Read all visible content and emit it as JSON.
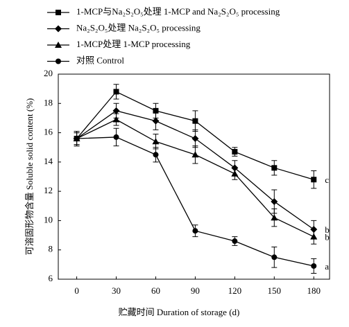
{
  "chart_data": {
    "type": "line",
    "x_label": "贮藏时间 Duration of storage (d)",
    "y_label": "可溶固形物含量 Soluble solid content (%)",
    "x": [
      0,
      30,
      60,
      90,
      120,
      150,
      180
    ],
    "series": [
      {
        "name": "1-MCP与Na₂S₂O₅处理 1-MCP and Na₂S₂O₅ processing",
        "color": "#000000",
        "marker": "square",
        "values": [
          15.6,
          18.8,
          17.5,
          16.8,
          14.7,
          13.6,
          12.8
        ],
        "errors": [
          0.5,
          0.5,
          0.5,
          0.7,
          0.3,
          0.5,
          0.6
        ]
      },
      {
        "name": "Na₂S₂O₅处理 Na₂S₂O₅ processing",
        "color": "#000000",
        "marker": "diamond",
        "values": [
          15.6,
          17.5,
          16.8,
          15.6,
          13.6,
          11.3,
          9.4
        ],
        "errors": [
          0.4,
          0.5,
          0.6,
          0.6,
          0.5,
          0.8,
          0.6
        ]
      },
      {
        "name": "1-MCP处理 1-MCP processing",
        "color": "#000000",
        "marker": "triangle",
        "values": [
          15.6,
          16.9,
          15.4,
          14.5,
          13.2,
          10.2,
          8.9
        ],
        "errors": [
          0.4,
          0.4,
          0.5,
          0.6,
          0.4,
          0.6,
          0.5
        ]
      },
      {
        "name": "对照 Control",
        "color": "#000000",
        "marker": "circle",
        "values": [
          15.6,
          15.7,
          14.5,
          9.3,
          8.6,
          7.5,
          6.9
        ],
        "errors": [
          0.5,
          0.6,
          0.5,
          0.4,
          0.3,
          0.7,
          0.5
        ]
      }
    ],
    "annotations": [
      "c",
      "b",
      "b",
      "a"
    ],
    "xlim": [
      -14,
      192
    ],
    "xticks": [
      0,
      30,
      60,
      90,
      120,
      150,
      180
    ],
    "ylim": [
      6,
      20
    ],
    "yticks": [
      6,
      8,
      10,
      12,
      14,
      16,
      18,
      20
    ]
  }
}
